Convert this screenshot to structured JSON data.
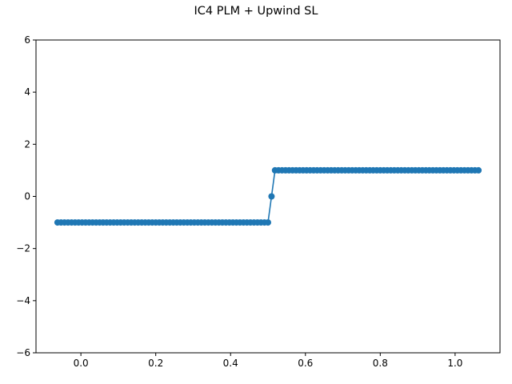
{
  "title": "IC4 PLM + Upwind SL",
  "chart_data": {
    "type": "line",
    "title": "IC4 PLM + Upwind SL",
    "xlabel": "",
    "ylabel": "",
    "xlim": [
      -0.12,
      1.12
    ],
    "ylim": [
      -6,
      6
    ],
    "xticks": [
      0.0,
      0.2,
      0.4,
      0.6,
      0.8,
      1.0
    ],
    "xtick_labels": [
      "0.0",
      "0.2",
      "0.4",
      "0.6",
      "0.8",
      "1.0"
    ],
    "yticks": [
      -6,
      -4,
      -2,
      0,
      2,
      4,
      6
    ],
    "ytick_labels": [
      "−6",
      "−4",
      "−2",
      "0",
      "2",
      "4",
      "6"
    ],
    "grid": false,
    "series": [
      {
        "color": "#1f77b4",
        "marker": "circle",
        "x": [
          -0.0625,
          -0.0531,
          -0.0438,
          -0.0344,
          -0.025,
          -0.0156,
          -0.0063,
          0.0031,
          0.0125,
          0.0219,
          0.0312,
          0.0406,
          0.05,
          0.0594,
          0.0687,
          0.0781,
          0.0875,
          0.0969,
          0.1062,
          0.1156,
          0.125,
          0.1344,
          0.1437,
          0.1531,
          0.1625,
          0.1719,
          0.1812,
          0.1906,
          0.2,
          0.2094,
          0.2187,
          0.2281,
          0.2375,
          0.2469,
          0.2562,
          0.2656,
          0.275,
          0.2844,
          0.2937,
          0.3031,
          0.3125,
          0.3219,
          0.3312,
          0.3406,
          0.35,
          0.3594,
          0.3687,
          0.3781,
          0.3875,
          0.3969,
          0.4062,
          0.4156,
          0.425,
          0.4344,
          0.4437,
          0.4531,
          0.4625,
          0.4719,
          0.4812,
          0.4906,
          0.5,
          0.5094,
          0.5187,
          0.5281,
          0.5375,
          0.5469,
          0.5562,
          0.5656,
          0.575,
          0.5844,
          0.5937,
          0.6031,
          0.6125,
          0.6219,
          0.6312,
          0.6406,
          0.65,
          0.6594,
          0.6687,
          0.6781,
          0.6875,
          0.6969,
          0.7062,
          0.7156,
          0.725,
          0.7344,
          0.7437,
          0.7531,
          0.7625,
          0.7719,
          0.7812,
          0.7906,
          0.8,
          0.8094,
          0.8187,
          0.8281,
          0.8375,
          0.8469,
          0.8562,
          0.8656,
          0.875,
          0.8844,
          0.8937,
          0.9031,
          0.9125,
          0.9219,
          0.9312,
          0.9406,
          0.95,
          0.9594,
          0.9687,
          0.9781,
          0.9875,
          0.9969,
          1.0062,
          1.0156,
          1.025,
          1.0344,
          1.0437,
          1.0531,
          1.0625
        ],
        "y": [
          -1,
          -1,
          -1,
          -1,
          -1,
          -1,
          -1,
          -1,
          -1,
          -1,
          -1,
          -1,
          -1,
          -1,
          -1,
          -1,
          -1,
          -1,
          -1,
          -1,
          -1,
          -1,
          -1,
          -1,
          -1,
          -1,
          -1,
          -1,
          -1,
          -1,
          -1,
          -1,
          -1,
          -1,
          -1,
          -1,
          -1,
          -1,
          -1,
          -1,
          -1,
          -1,
          -1,
          -1,
          -1,
          -1,
          -1,
          -1,
          -1,
          -1,
          -1,
          -1,
          -1,
          -1,
          -1,
          -1,
          -1,
          -1,
          -1,
          -1,
          -1,
          0,
          1,
          1,
          1,
          1,
          1,
          1,
          1,
          1,
          1,
          1,
          1,
          1,
          1,
          1,
          1,
          1,
          1,
          1,
          1,
          1,
          1,
          1,
          1,
          1,
          1,
          1,
          1,
          1,
          1,
          1,
          1,
          1,
          1,
          1,
          1,
          1,
          1,
          1,
          1,
          1,
          1,
          1,
          1,
          1,
          1,
          1,
          1,
          1,
          1,
          1,
          1,
          1,
          1,
          1,
          1,
          1,
          1,
          1,
          1
        ]
      }
    ]
  }
}
